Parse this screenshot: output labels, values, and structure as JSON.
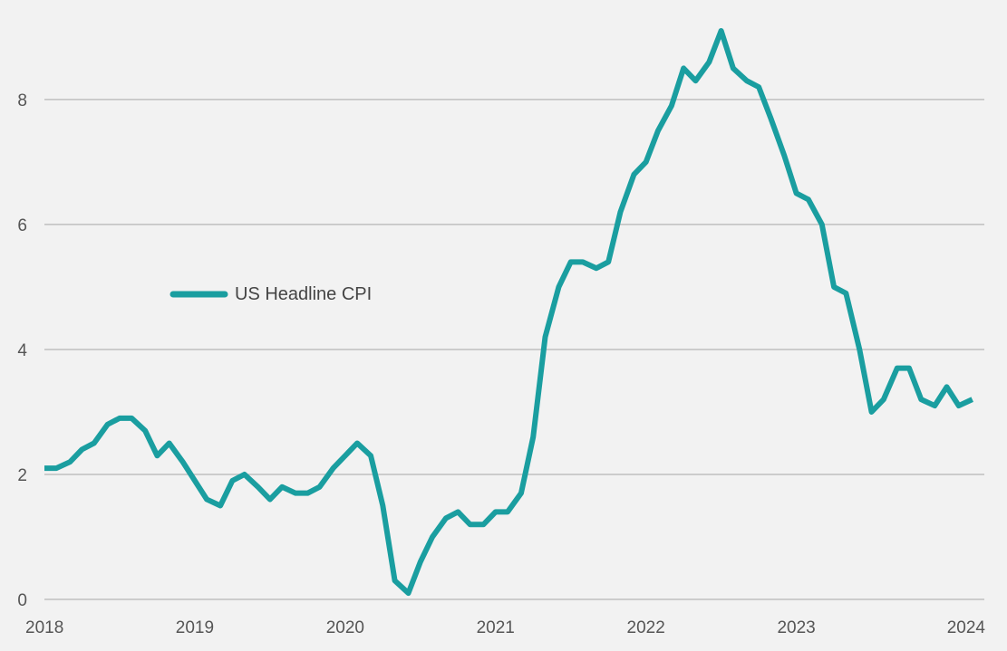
{
  "chart_data": {
    "type": "line",
    "title": "",
    "xlabel": "",
    "ylabel": "",
    "ylim": [
      0,
      9.1
    ],
    "xlim": [
      2018.0,
      2024.25
    ],
    "grid": true,
    "legend_position": "upper-left",
    "y_ticks": [
      0,
      2,
      4,
      6,
      8
    ],
    "y_tick_labels": [
      "0",
      "2",
      "4",
      "6",
      "8"
    ],
    "x_ticks": [
      2018,
      2019,
      2020,
      2021,
      2022,
      2023,
      2024
    ],
    "x_tick_labels": [
      "2018",
      "2019",
      "2020",
      "2021",
      "2022",
      "2023",
      "2024"
    ],
    "series": [
      {
        "name": "US Headline CPI",
        "color": "#1a9ea0",
        "points": [
          [
            2018.0,
            2.1
          ],
          [
            2018.08,
            2.1
          ],
          [
            2018.17,
            2.2
          ],
          [
            2018.25,
            2.4
          ],
          [
            2018.33,
            2.5
          ],
          [
            2018.42,
            2.8
          ],
          [
            2018.5,
            2.9
          ],
          [
            2018.58,
            2.9
          ],
          [
            2018.67,
            2.7
          ],
          [
            2018.75,
            2.3
          ],
          [
            2018.83,
            2.5
          ],
          [
            2018.92,
            2.2
          ],
          [
            2019.0,
            1.9
          ],
          [
            2019.08,
            1.6
          ],
          [
            2019.17,
            1.5
          ],
          [
            2019.25,
            1.9
          ],
          [
            2019.33,
            2.0
          ],
          [
            2019.42,
            1.8
          ],
          [
            2019.5,
            1.6
          ],
          [
            2019.58,
            1.8
          ],
          [
            2019.67,
            1.7
          ],
          [
            2019.75,
            1.7
          ],
          [
            2019.83,
            1.8
          ],
          [
            2019.92,
            2.1
          ],
          [
            2020.0,
            2.3
          ],
          [
            2020.08,
            2.5
          ],
          [
            2020.17,
            2.3
          ],
          [
            2020.25,
            1.5
          ],
          [
            2020.33,
            0.3
          ],
          [
            2020.42,
            0.1
          ],
          [
            2020.5,
            0.6
          ],
          [
            2020.58,
            1.0
          ],
          [
            2020.67,
            1.3
          ],
          [
            2020.75,
            1.4
          ],
          [
            2020.83,
            1.2
          ],
          [
            2020.92,
            1.2
          ],
          [
            2021.0,
            1.4
          ],
          [
            2021.08,
            1.4
          ],
          [
            2021.17,
            1.7
          ],
          [
            2021.25,
            2.6
          ],
          [
            2021.33,
            4.2
          ],
          [
            2021.42,
            5.0
          ],
          [
            2021.5,
            5.4
          ],
          [
            2021.58,
            5.4
          ],
          [
            2021.67,
            5.3
          ],
          [
            2021.75,
            5.4
          ],
          [
            2021.83,
            6.2
          ],
          [
            2021.92,
            6.8
          ],
          [
            2022.0,
            7.0
          ],
          [
            2022.08,
            7.5
          ],
          [
            2022.17,
            7.9
          ],
          [
            2022.25,
            8.5
          ],
          [
            2022.33,
            8.3
          ],
          [
            2022.42,
            8.6
          ],
          [
            2022.5,
            9.1
          ],
          [
            2022.58,
            8.5
          ],
          [
            2022.67,
            8.3
          ],
          [
            2022.75,
            8.2
          ],
          [
            2022.83,
            7.7
          ],
          [
            2022.92,
            7.1
          ],
          [
            2023.0,
            6.5
          ],
          [
            2023.08,
            6.4
          ],
          [
            2023.17,
            6.0
          ],
          [
            2023.25,
            5.0
          ],
          [
            2023.33,
            4.9
          ],
          [
            2023.42,
            4.0
          ],
          [
            2023.5,
            3.0
          ],
          [
            2023.58,
            3.2
          ],
          [
            2023.67,
            3.7
          ],
          [
            2023.75,
            3.7
          ],
          [
            2023.83,
            3.2
          ],
          [
            2023.92,
            3.1
          ],
          [
            2024.0,
            3.4
          ],
          [
            2024.08,
            3.1
          ],
          [
            2024.17,
            3.2
          ]
        ]
      }
    ]
  }
}
